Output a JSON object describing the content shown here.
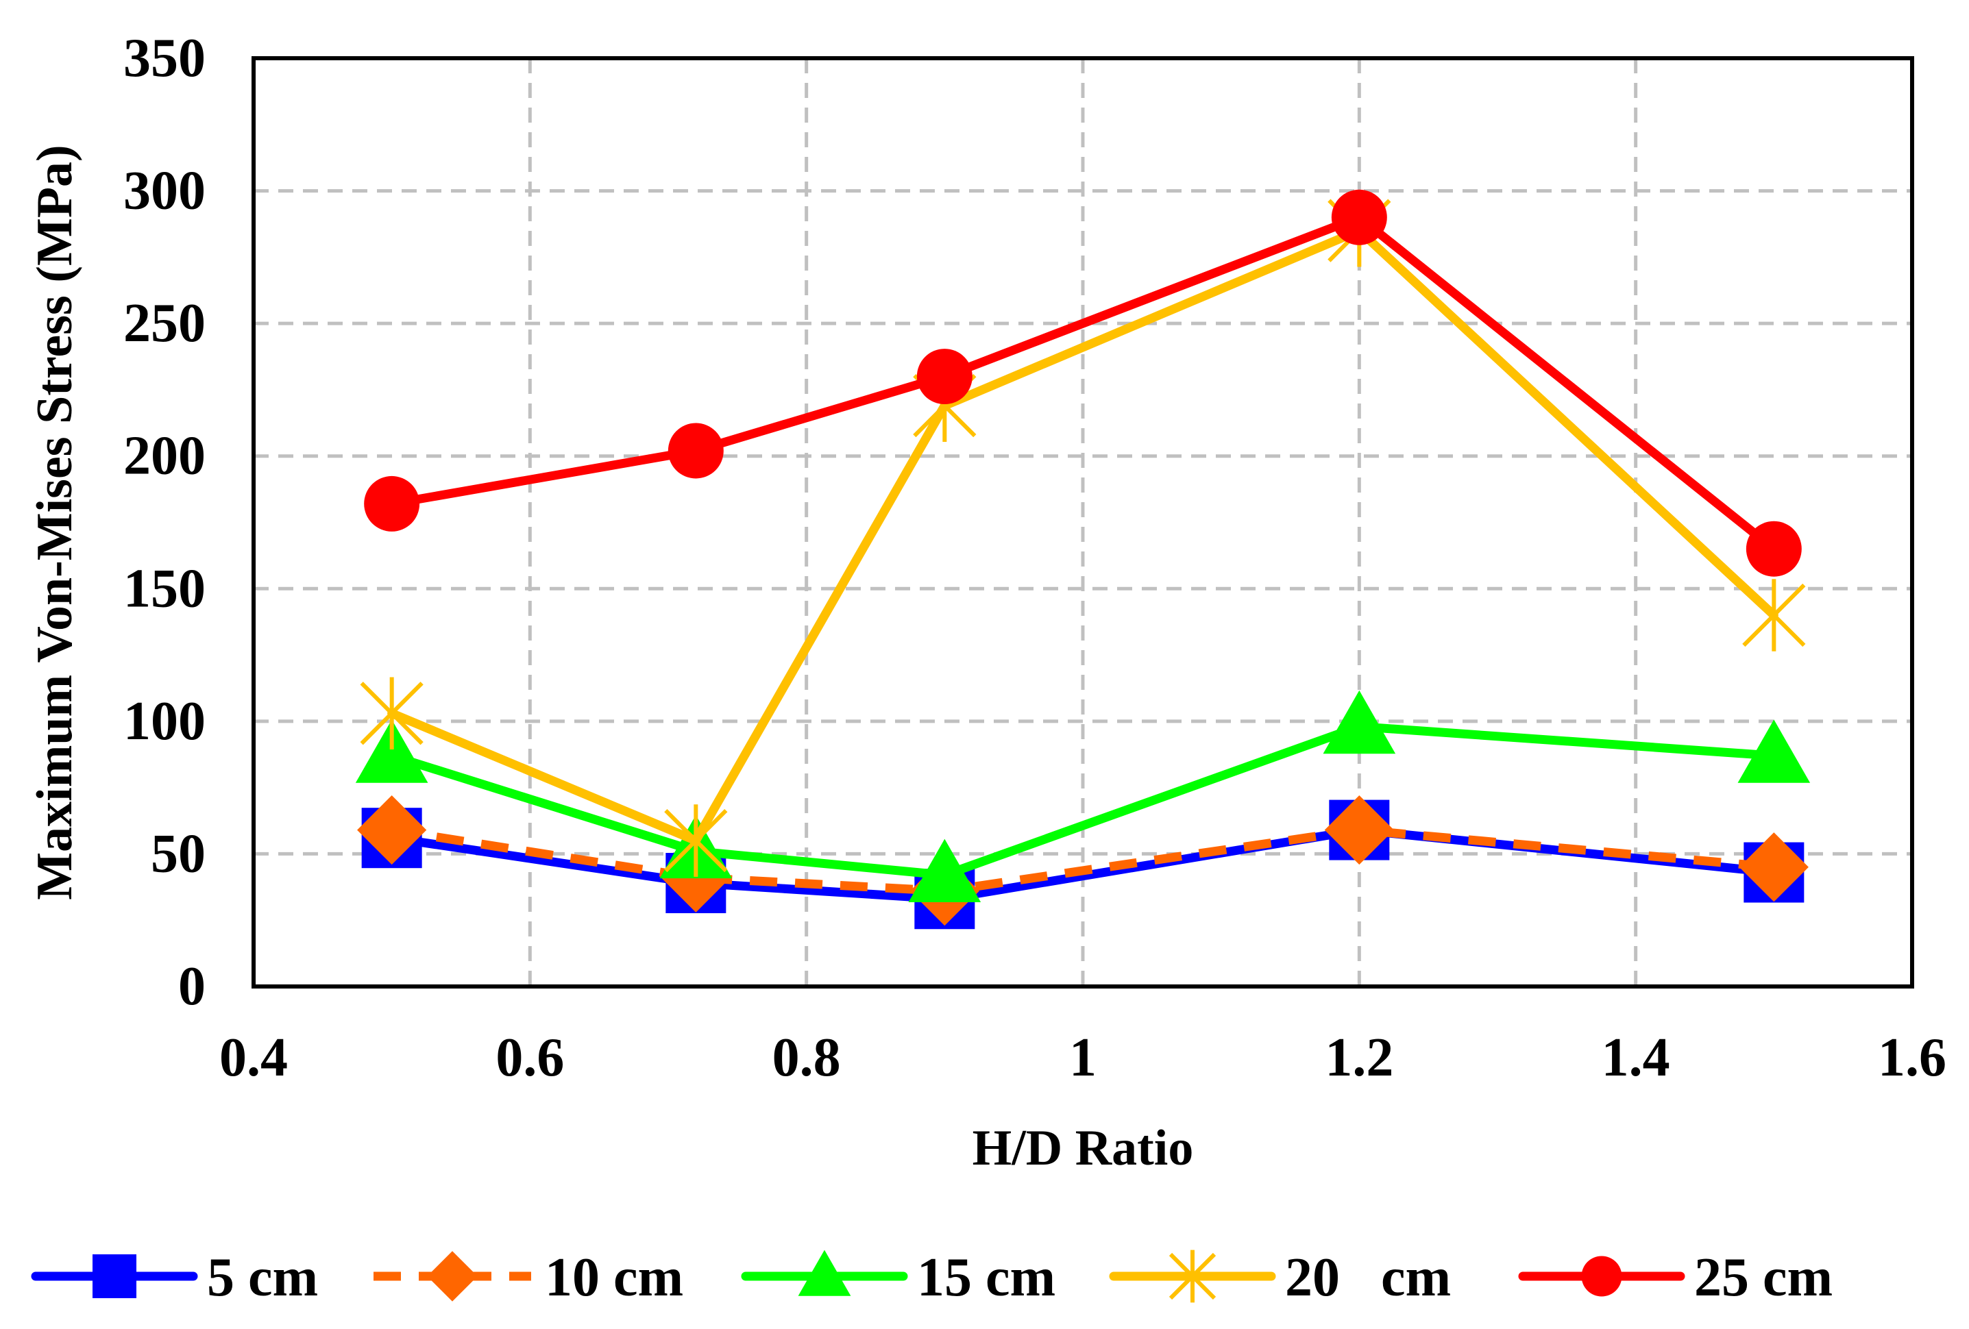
{
  "chart_data": {
    "type": "line",
    "title": "",
    "xlabel": "H/D Ratio",
    "ylabel": "Maximum Von-Mises Stress (MPa)",
    "xlim": [
      0.4,
      1.6
    ],
    "ylim": [
      0,
      350
    ],
    "x_ticks": [
      "0.4",
      "0.6",
      "0.8",
      "1",
      "1.2",
      "1.4",
      "1.6"
    ],
    "y_ticks": [
      "0",
      "50",
      "100",
      "150",
      "200",
      "250",
      "300",
      "350"
    ],
    "x_tick_values": [
      0.4,
      0.6,
      0.8,
      1.0,
      1.2,
      1.4,
      1.6
    ],
    "y_tick_values": [
      0,
      50,
      100,
      150,
      200,
      250,
      300,
      350
    ],
    "grid": true,
    "legend_position": "bottom",
    "x": [
      0.5,
      0.72,
      0.9,
      1.2,
      1.5
    ],
    "series": [
      {
        "name": "5 cm",
        "values": [
          56,
          39,
          33,
          59,
          43
        ],
        "color": "#0000ff",
        "marker": "square",
        "dash": "solid"
      },
      {
        "name": "10 cm",
        "values": [
          59,
          41,
          36,
          59,
          45
        ],
        "color": "#ff6600",
        "marker": "diamond",
        "dash": "dashed"
      },
      {
        "name": "15 cm",
        "values": [
          87,
          51,
          42,
          98,
          87
        ],
        "color": "#00ff00",
        "marker": "triangle",
        "dash": "solid"
      },
      {
        "name": "20   cm",
        "values": [
          103,
          55,
          219,
          285,
          140
        ],
        "color": "#ffc000",
        "marker": "star",
        "dash": "solid"
      },
      {
        "name": "25 cm",
        "values": [
          182,
          202,
          230,
          290,
          165
        ],
        "color": "#ff0000",
        "marker": "circle",
        "dash": "solid"
      }
    ]
  }
}
